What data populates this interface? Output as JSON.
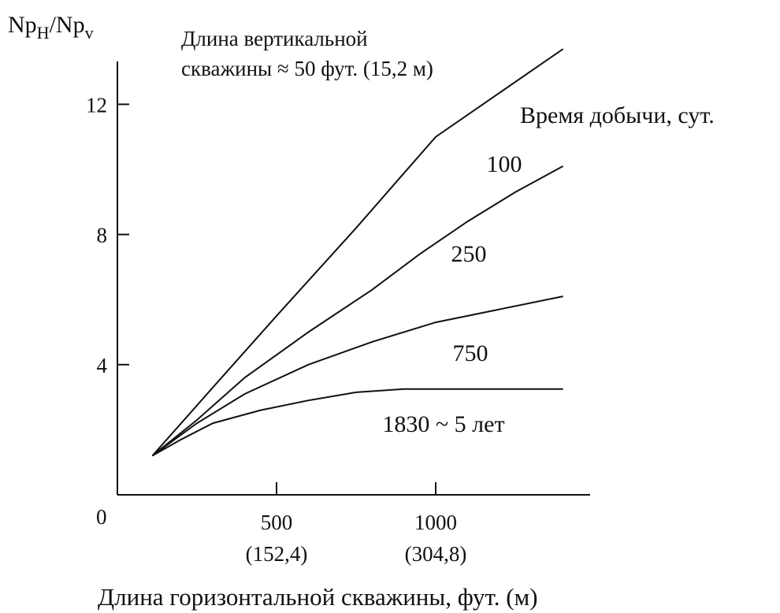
{
  "chart_data": {
    "type": "line",
    "y_axis_label": "Np",
    "y_axis_label_sub1": "H",
    "y_axis_label_sep": "/Np",
    "y_axis_label_sub2": "v",
    "xlabel": "Длина горизонтальной скважины, фут. (м)",
    "note_line1": "Длина вертикальной",
    "note_line2": "скважины ≈ 50 фут. (15,2 м)",
    "legend_title": "Время добычи, сут.",
    "origin_label": "0",
    "xlim": [
      0,
      1500
    ],
    "ylim": [
      0,
      15
    ],
    "y_ticks": [
      {
        "value": 4,
        "label": "4"
      },
      {
        "value": 8,
        "label": "8"
      },
      {
        "value": 12,
        "label": "12"
      }
    ],
    "x_ticks": [
      {
        "value": 500,
        "label": "500",
        "sublabel": "(152,4)"
      },
      {
        "value": 1000,
        "label": "1000",
        "sublabel": "(304,8)"
      }
    ],
    "series": [
      {
        "points": [
          [
            110,
            1.2
          ],
          [
            300,
            3.3
          ],
          [
            500,
            5.5
          ],
          [
            750,
            8.2
          ],
          [
            1000,
            11.0
          ],
          [
            1400,
            13.7
          ]
        ]
      },
      {
        "name": "100",
        "points": [
          [
            110,
            1.2
          ],
          [
            250,
            2.3
          ],
          [
            400,
            3.6
          ],
          [
            600,
            5.0
          ],
          [
            800,
            6.3
          ],
          [
            950,
            7.4
          ],
          [
            1100,
            8.4
          ],
          [
            1250,
            9.3
          ],
          [
            1400,
            10.1
          ]
        ]
      },
      {
        "name": "250",
        "points": [
          [
            110,
            1.2
          ],
          [
            250,
            2.2
          ],
          [
            400,
            3.1
          ],
          [
            600,
            4.0
          ],
          [
            800,
            4.7
          ],
          [
            1000,
            5.3
          ],
          [
            1200,
            5.7
          ],
          [
            1400,
            6.1
          ]
        ]
      },
      {
        "name": "750",
        "points": [
          [
            110,
            1.2
          ],
          [
            200,
            1.7
          ],
          [
            300,
            2.2
          ],
          [
            450,
            2.6
          ],
          [
            600,
            2.9
          ],
          [
            750,
            3.15
          ],
          [
            900,
            3.25
          ],
          [
            1100,
            3.25
          ],
          [
            1400,
            3.25
          ]
        ]
      }
    ],
    "series_end_labels": [
      "100",
      "250",
      "750",
      "1830 ~ 5 лет"
    ]
  }
}
